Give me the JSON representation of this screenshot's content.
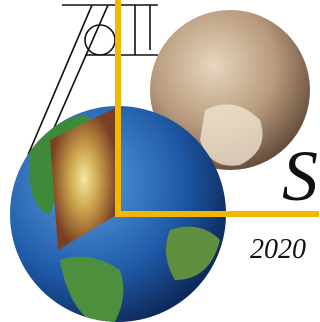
{
  "logo": {
    "letter": "S",
    "year": "2020"
  }
}
